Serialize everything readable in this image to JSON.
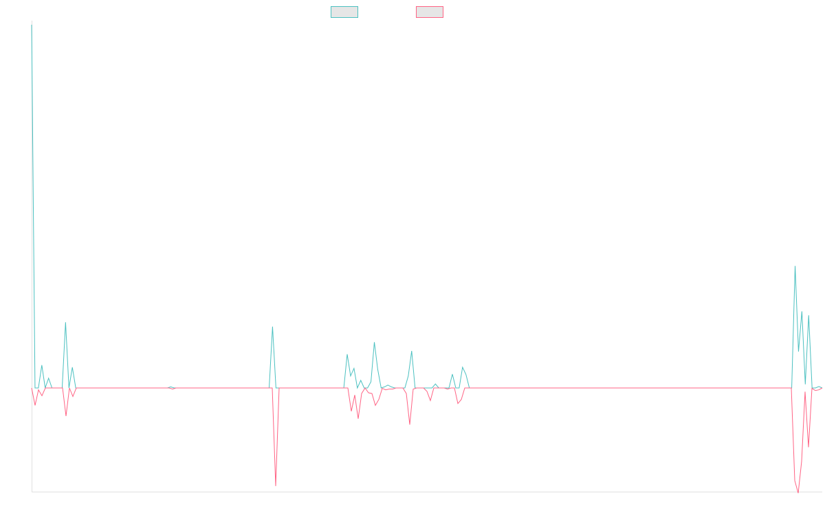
{
  "chart_data": {
    "type": "line",
    "title": "",
    "xlabel": "",
    "ylabel": "",
    "ylim": [
      -28,
      100
    ],
    "grid": false,
    "legend_position": "top-center",
    "series": [
      {
        "color": "#4bc0c0",
        "legend_fill": "#e6e6e6",
        "values": [
          100,
          0,
          0,
          6.3,
          0,
          2.7,
          0,
          0,
          0,
          0,
          18.1,
          0,
          5.7,
          0,
          0,
          0,
          0,
          0,
          0,
          0,
          0,
          0,
          0,
          0,
          0,
          0,
          0,
          0,
          0,
          0,
          0,
          0,
          0,
          0,
          0,
          0,
          0,
          0,
          0,
          0,
          0,
          0.3,
          0,
          0,
          0,
          0,
          0,
          0,
          0,
          0,
          0,
          0,
          0,
          0,
          0,
          0,
          0,
          0,
          0,
          0,
          0,
          0,
          0,
          0,
          0,
          0,
          0,
          0,
          0,
          0,
          0,
          16.9,
          0,
          0,
          0,
          0,
          0,
          0,
          0,
          0,
          0,
          0,
          0,
          0,
          0,
          0,
          0,
          0,
          0,
          0,
          0,
          0,
          0,
          9.3,
          3.3,
          5.4,
          0,
          2.1,
          0,
          0,
          1.7,
          12.6,
          5.1,
          0,
          0.3,
          0.8,
          0.3,
          0,
          0,
          0,
          0,
          3.3,
          10.2,
          0,
          0,
          0,
          0,
          0,
          0,
          1.1,
          0,
          0,
          0,
          0,
          3.8,
          0,
          0,
          5.7,
          3.7,
          0,
          0,
          0,
          0,
          0,
          0,
          0,
          0,
          0,
          0,
          0,
          0,
          0,
          0,
          0,
          0,
          0,
          0,
          0,
          0,
          0,
          0,
          0,
          0,
          0,
          0,
          0,
          0,
          0,
          0,
          0,
          0,
          0,
          0,
          0,
          0,
          0,
          0,
          0,
          0,
          0,
          0,
          0,
          0,
          0,
          0,
          0,
          0,
          0,
          0,
          0,
          0,
          0,
          0,
          0,
          0,
          0,
          0,
          0,
          0,
          0,
          0,
          0,
          0,
          0,
          0,
          0,
          0,
          0,
          0,
          0,
          0,
          0,
          0,
          0,
          0,
          0,
          0,
          0,
          0,
          0,
          0,
          0,
          0,
          0,
          0,
          0,
          0,
          0,
          0,
          0,
          0,
          0,
          0,
          0,
          0,
          33.6,
          10,
          21.1,
          1,
          20,
          0,
          0,
          0.4,
          0
        ]
      },
      {
        "color": "#ff6384",
        "legend_fill": "#e6e6e6",
        "values": [
          0,
          -4.7,
          -0.5,
          -2.1,
          0,
          0,
          0,
          0,
          0,
          0,
          -7.6,
          0,
          -2.3,
          0,
          0,
          0,
          0,
          0,
          0,
          0,
          0,
          0,
          0,
          0,
          0,
          0,
          0,
          0,
          0,
          0,
          0,
          0,
          0,
          0,
          0,
          0,
          0,
          0,
          0,
          0,
          0,
          -0.3,
          0,
          0,
          0,
          0,
          0,
          0,
          0,
          0,
          0,
          0,
          0,
          0,
          0,
          0,
          0,
          0,
          0,
          0,
          0,
          0,
          0,
          0,
          0,
          0,
          0,
          0,
          0,
          0,
          0,
          -26.5,
          0,
          0,
          0,
          0,
          0,
          0,
          0,
          0,
          0,
          0,
          0,
          0,
          0,
          0,
          0,
          0,
          0,
          0,
          0,
          0,
          0,
          -6.3,
          -1.9,
          -8.3,
          -1.5,
          0,
          -1.3,
          -1.5,
          -4.7,
          -3.1,
          -0.1,
          -0.5,
          -0.3,
          -0.3,
          0,
          0,
          0,
          -1.5,
          -9.9,
          -0.3,
          0,
          0,
          0,
          -0.9,
          -3.4,
          0,
          0,
          0,
          0,
          -0.3,
          0,
          0,
          -4.2,
          -3.1,
          0,
          0,
          0,
          0,
          0,
          0,
          0,
          0,
          0,
          0,
          0,
          0,
          0,
          0,
          0,
          0,
          0,
          0,
          0,
          0,
          0,
          0,
          0,
          0,
          0,
          0,
          0,
          0,
          0,
          0,
          0,
          0,
          0,
          0,
          0,
          0,
          0,
          0,
          0,
          0,
          0,
          0,
          0,
          0,
          0,
          0,
          0,
          0,
          0,
          0,
          0,
          0,
          0,
          0,
          0,
          0,
          0,
          0,
          0,
          0,
          0,
          0,
          0,
          0,
          0,
          0,
          0,
          0,
          0,
          0,
          0,
          0,
          0,
          0,
          0,
          0,
          0,
          0,
          0,
          0,
          0,
          0,
          0,
          0,
          0,
          0,
          0,
          0,
          0,
          0,
          0,
          0,
          0,
          0,
          0,
          0,
          -25,
          -28.4,
          -19.8,
          -1,
          -16,
          -0.1,
          -0.7,
          -0.5,
          0
        ]
      }
    ]
  }
}
